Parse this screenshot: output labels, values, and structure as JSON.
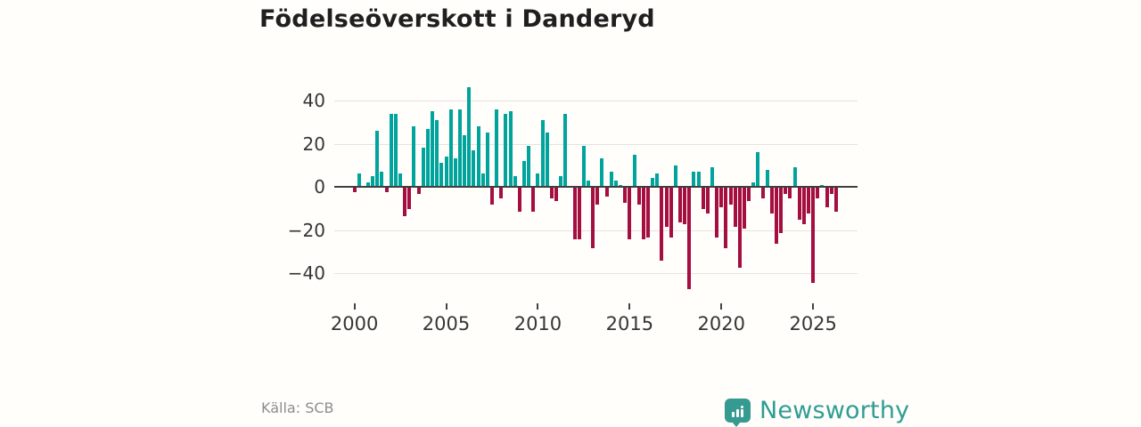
{
  "title": "Födelseöverskott i Danderyd",
  "source": "Källa: SCB",
  "brand": {
    "name": "Newsworthy",
    "color": "#359a90"
  },
  "chart_data": {
    "type": "bar",
    "title": "Födelseöverskott i Danderyd",
    "series_name": "Födelseöverskott per kvartal",
    "frequency": "quarterly",
    "start_period": "2000Q1",
    "x_tick_years": [
      2000,
      2005,
      2010,
      2015,
      2020,
      2025
    ],
    "y_ticks": [
      40,
      20,
      0,
      -20,
      -40
    ],
    "ylim": [
      -50,
      50
    ],
    "grid": "horizontal",
    "legend": "none",
    "positive_color": "#00a49c",
    "negative_color": "#a50e41",
    "values": [
      -2,
      6,
      0,
      2,
      5,
      26,
      7,
      -2,
      34,
      34,
      6,
      -13,
      -10,
      28,
      -3,
      18,
      27,
      35,
      31,
      11,
      14,
      36,
      13,
      36,
      24,
      46,
      17,
      28,
      6,
      25,
      -8,
      36,
      -5,
      34,
      35,
      5,
      -11,
      12,
      19,
      -11,
      6,
      31,
      25,
      -5,
      -6,
      5,
      34,
      0,
      -24,
      -24,
      19,
      3,
      -28,
      -8,
      13,
      -4,
      7,
      3,
      1,
      -7,
      -24,
      15,
      -8,
      -24,
      -23,
      4,
      6,
      -34,
      -18,
      -23,
      10,
      -16,
      -17,
      -47,
      7,
      7,
      -10,
      -12,
      9,
      -23,
      -9,
      -28,
      -8,
      -18,
      -37,
      -19,
      -6,
      2,
      16,
      -5,
      8,
      -12,
      -26,
      -21,
      -3,
      -5,
      9,
      -15,
      -17,
      -12,
      -44,
      -5,
      1,
      -9,
      -3,
      -11
    ]
  }
}
